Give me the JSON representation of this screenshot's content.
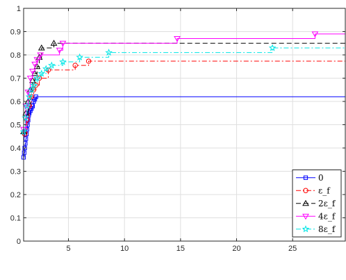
{
  "chart_data": {
    "type": "line",
    "title": "",
    "xlabel": "",
    "ylabel": "",
    "xlim": [
      1,
      29.7
    ],
    "ylim": [
      0,
      1
    ],
    "xticks": [
      5,
      10,
      15,
      20,
      25
    ],
    "yticks": [
      0,
      0.1,
      0.2,
      0.3,
      0.4,
      0.5,
      0.6,
      0.7,
      0.8,
      0.9,
      1
    ],
    "xtick_labels": [
      "5",
      "10",
      "15",
      "20",
      "25"
    ],
    "ytick_labels": [
      "0",
      "0.1",
      "0.2",
      "0.3",
      "0.4",
      "0.5",
      "0.6",
      "0.7",
      "0.8",
      "0.9",
      "1"
    ],
    "grid": true,
    "legend_position": "bottom-right",
    "series": [
      {
        "name": "0",
        "color": "#0000ff",
        "dash": "solid",
        "marker": "square",
        "x": [
          1.0,
          1.05,
          1.1,
          1.15,
          1.2,
          1.25,
          1.3,
          1.35,
          1.4,
          1.45,
          1.5,
          1.6,
          1.7,
          1.8,
          1.9,
          2.0,
          2.1
        ],
        "y": [
          0.36,
          0.38,
          0.4,
          0.42,
          0.44,
          0.46,
          0.48,
          0.5,
          0.52,
          0.54,
          0.55,
          0.56,
          0.57,
          0.58,
          0.6,
          0.61,
          0.62
        ]
      },
      {
        "name": "ε_f",
        "color": "#ff0000",
        "dash": "dashdot",
        "marker": "circle",
        "x": [
          1.1,
          1.3,
          1.5,
          1.7,
          1.9,
          2.1,
          2.4,
          3.2,
          5.6,
          6.8
        ],
        "y": [
          0.46,
          0.52,
          0.58,
          0.62,
          0.65,
          0.67,
          0.7,
          0.735,
          0.755,
          0.773
        ]
      },
      {
        "name": "2ε_f",
        "color": "#000000",
        "dash": "dashed",
        "marker": "triangle-up",
        "x": [
          1.0,
          1.2,
          1.4,
          1.6,
          1.8,
          2.0,
          2.2,
          2.4,
          2.6,
          3.7
        ],
        "y": [
          0.47,
          0.55,
          0.6,
          0.65,
          0.69,
          0.72,
          0.75,
          0.79,
          0.83,
          0.85
        ]
      },
      {
        "name": "4ε_f",
        "color": "#ff00ff",
        "dash": "solid",
        "marker": "triangle-down",
        "x": [
          1.0,
          1.2,
          1.4,
          1.6,
          1.8,
          2.0,
          2.2,
          2.5,
          4.2,
          4.5,
          14.7,
          27.0
        ],
        "y": [
          0.48,
          0.58,
          0.64,
          0.7,
          0.73,
          0.76,
          0.78,
          0.8,
          0.82,
          0.85,
          0.87,
          0.89
        ]
      },
      {
        "name": "8ε_f",
        "color": "#00e6e6",
        "dash": "dashdot",
        "marker": "star",
        "x": [
          1.0,
          1.15,
          1.3,
          1.5,
          1.7,
          1.9,
          2.2,
          2.6,
          3.0,
          3.5,
          4.5,
          6.0,
          8.6,
          23.2
        ],
        "y": [
          0.47,
          0.53,
          0.58,
          0.62,
          0.65,
          0.67,
          0.7,
          0.72,
          0.74,
          0.755,
          0.77,
          0.79,
          0.81,
          0.83
        ]
      }
    ]
  }
}
